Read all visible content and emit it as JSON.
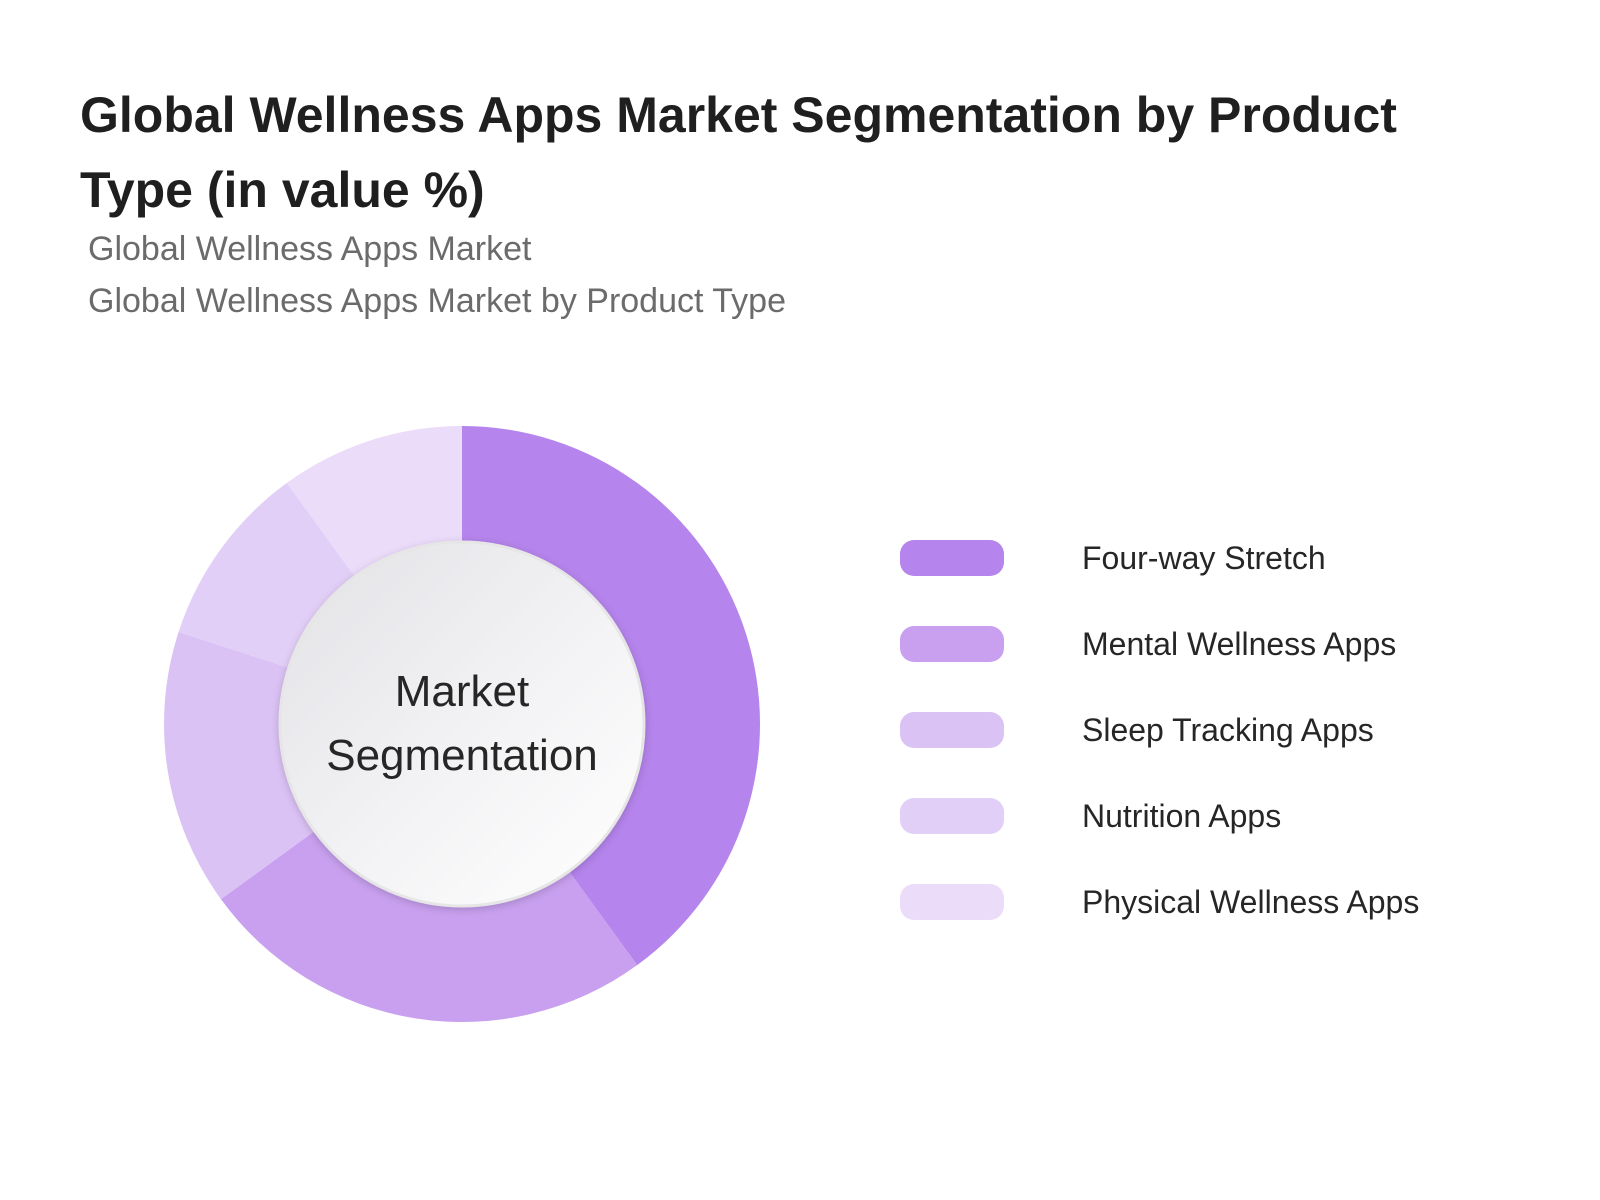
{
  "title": "Global Wellness Apps Market Segmentation by Product Type (in value %)",
  "subtitle_line1": "Global Wellness Apps Market",
  "subtitle_line2": "Global Wellness Apps Market by Product Type",
  "center_label": "Market Segmentation",
  "chart_data": {
    "type": "pie",
    "title": "Global Wellness Apps Market Segmentation by Product Type (in value %)",
    "donut": true,
    "legend_position": "right",
    "categories": [
      "Four-way Stretch",
      "Mental Wellness Apps",
      "Sleep Tracking Apps",
      "Nutrition Apps",
      "Physical Wellness Apps"
    ],
    "values": [
      40,
      25,
      15,
      10,
      10
    ],
    "colors": [
      "#b584ec",
      "#c8a0ef",
      "#dbc2f5",
      "#e2cff7",
      "#ebdcfa"
    ]
  }
}
